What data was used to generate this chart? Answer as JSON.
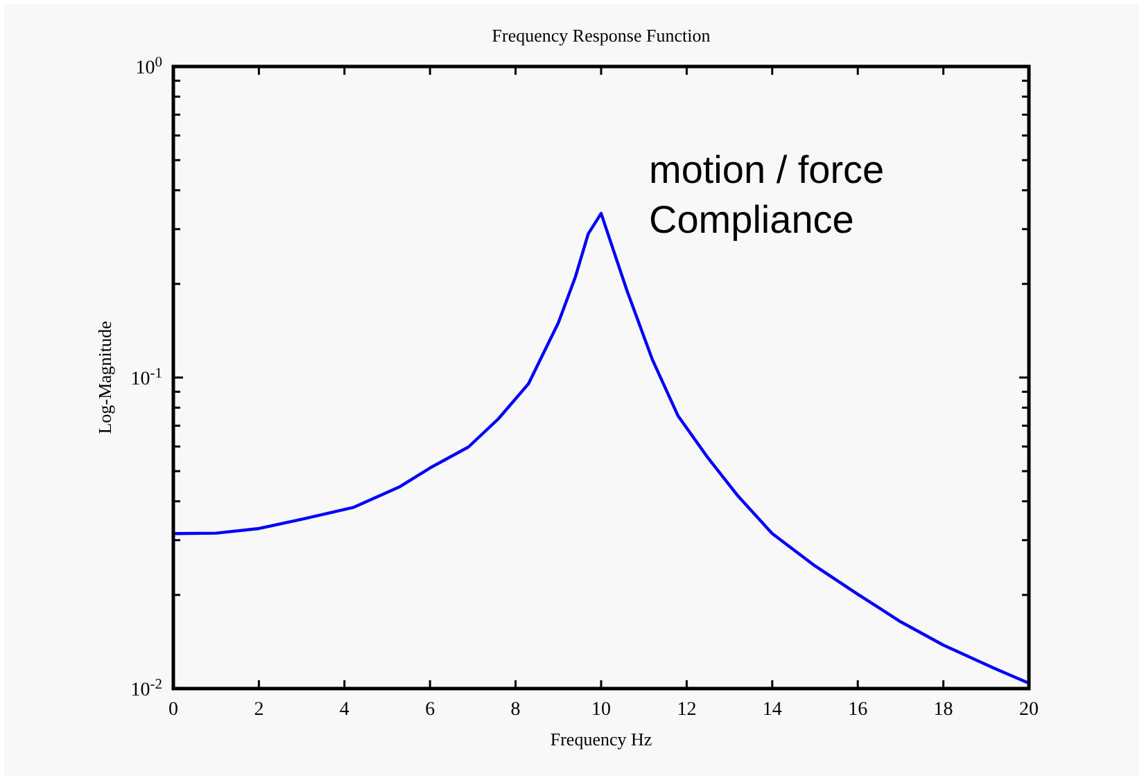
{
  "chart_data": {
    "type": "line",
    "title": "Frequency Response Function",
    "xlabel": "Frequency Hz",
    "ylabel": "Log-Magnitude",
    "annotations": [
      "motion / force\nCompliance"
    ],
    "x": [
      0,
      1,
      2,
      3,
      4.2,
      5.3,
      6,
      6.9,
      7.6,
      8.3,
      9,
      9.4,
      9.7,
      10,
      10.6,
      11.2,
      11.8,
      12.5,
      13.2,
      14,
      15,
      16,
      17,
      18,
      19.2,
      20
    ],
    "series": [
      {
        "color": "#0000ff",
        "values": [
          0.0315,
          0.0316,
          0.0327,
          0.035,
          0.0382,
          0.0446,
          0.0512,
          0.0598,
          0.0737,
          0.0954,
          0.15,
          0.211,
          0.29,
          0.337,
          0.191,
          0.114,
          0.0752,
          0.0551,
          0.0416,
          0.0315,
          0.0248,
          0.0201,
          0.0164,
          0.0138,
          0.0116,
          0.0104
        ]
      }
    ],
    "log": "y",
    "grid": false,
    "marker": "none",
    "line_style": "solid",
    "xlim": [
      0,
      20
    ],
    "xticks": [
      0,
      2,
      4,
      6,
      8,
      10,
      12,
      14,
      16,
      18,
      20
    ],
    "ylim": [
      0.01,
      1
    ],
    "yticks": [
      {
        "value": 0.01,
        "label": "10$^{-2}$"
      },
      {
        "value": 0.02,
        "label": null
      },
      {
        "value": 0.03,
        "label": null
      },
      {
        "value": 0.04,
        "label": null
      },
      {
        "value": 0.05,
        "label": null
      },
      {
        "value": 0.06,
        "label": null
      },
      {
        "value": 0.07,
        "label": null
      },
      {
        "value": 0.08,
        "label": null
      },
      {
        "value": 0.09,
        "label": null
      },
      {
        "value": 0.1,
        "label": "10$^{-1}$"
      },
      {
        "value": 0.2,
        "label": null
      },
      {
        "value": 0.3,
        "label": null
      },
      {
        "value": 0.4,
        "label": null
      },
      {
        "value": 0.5,
        "label": null
      },
      {
        "value": 0.6,
        "label": null
      },
      {
        "value": 0.7,
        "label": null
      },
      {
        "value": 0.8,
        "label": null
      },
      {
        "value": 0.9,
        "label": null
      },
      {
        "value": 1,
        "label": "10$^{0}$"
      }
    ]
  }
}
